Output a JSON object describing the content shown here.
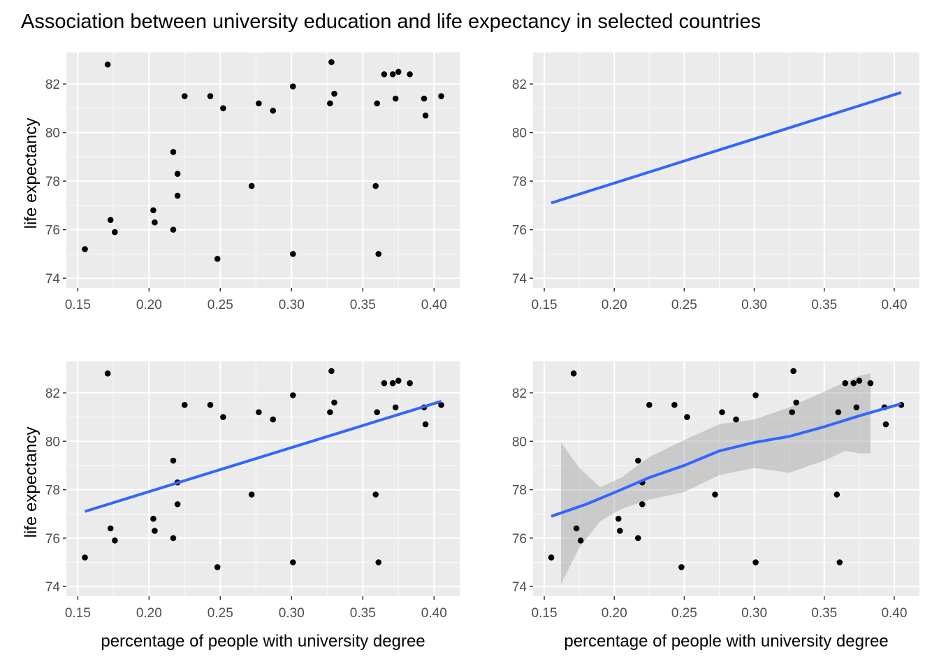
{
  "figure": {
    "title": "Association between university education and life expectancy in selected countries"
  },
  "colors": {
    "panel_background": "#EBEBEB",
    "grid": "#FFFFFF",
    "points": "#000000",
    "smooth_line": "#3366FF",
    "confidence_band": "#999999",
    "tick_text": "#4D4D4D"
  },
  "chart_data": [
    {
      "type": "scatter",
      "panel": "top-left",
      "show_points": true,
      "show_line": false,
      "show_band": false,
      "xlabel": "",
      "ylabel": "life expectancy",
      "xlim": [
        0.142,
        0.418
      ],
      "ylim": [
        73.6,
        83.3
      ],
      "xticks": [
        0.15,
        0.2,
        0.25,
        0.3,
        0.35,
        0.4
      ],
      "xtick_labels": [
        "0.15",
        "0.20",
        "0.25",
        "0.30",
        "0.35",
        "0.40"
      ],
      "yticks": [
        74,
        76,
        78,
        80,
        82
      ],
      "ytick_labels": [
        "74",
        "76",
        "78",
        "80",
        "82"
      ],
      "grid": true,
      "points": [
        {
          "x": 0.155,
          "y": 75.2
        },
        {
          "x": 0.171,
          "y": 82.8
        },
        {
          "x": 0.173,
          "y": 76.4
        },
        {
          "x": 0.176,
          "y": 75.9
        },
        {
          "x": 0.203,
          "y": 76.8
        },
        {
          "x": 0.204,
          "y": 76.3
        },
        {
          "x": 0.217,
          "y": 79.2
        },
        {
          "x": 0.217,
          "y": 76.0
        },
        {
          "x": 0.22,
          "y": 78.3
        },
        {
          "x": 0.22,
          "y": 77.4
        },
        {
          "x": 0.225,
          "y": 81.5
        },
        {
          "x": 0.243,
          "y": 81.5
        },
        {
          "x": 0.248,
          "y": 74.8
        },
        {
          "x": 0.252,
          "y": 81.0
        },
        {
          "x": 0.272,
          "y": 77.8
        },
        {
          "x": 0.277,
          "y": 81.2
        },
        {
          "x": 0.287,
          "y": 80.9
        },
        {
          "x": 0.301,
          "y": 81.9
        },
        {
          "x": 0.301,
          "y": 75.0
        },
        {
          "x": 0.327,
          "y": 81.2
        },
        {
          "x": 0.328,
          "y": 82.9
        },
        {
          "x": 0.33,
          "y": 81.6
        },
        {
          "x": 0.359,
          "y": 77.8
        },
        {
          "x": 0.36,
          "y": 81.2
        },
        {
          "x": 0.361,
          "y": 75.0
        },
        {
          "x": 0.365,
          "y": 82.4
        },
        {
          "x": 0.371,
          "y": 82.4
        },
        {
          "x": 0.373,
          "y": 81.4
        },
        {
          "x": 0.375,
          "y": 82.5
        },
        {
          "x": 0.383,
          "y": 82.4
        },
        {
          "x": 0.393,
          "y": 81.4
        },
        {
          "x": 0.394,
          "y": 80.7
        },
        {
          "x": 0.405,
          "y": 81.5
        }
      ]
    },
    {
      "type": "line",
      "panel": "top-right",
      "show_points": false,
      "show_line": true,
      "show_band": false,
      "xlabel": "",
      "ylabel": "",
      "xlim": [
        0.142,
        0.418
      ],
      "ylim": [
        73.6,
        83.3
      ],
      "xticks": [
        0.15,
        0.2,
        0.25,
        0.3,
        0.35,
        0.4
      ],
      "xtick_labels": [
        "0.15",
        "0.20",
        "0.25",
        "0.30",
        "0.35",
        "0.40"
      ],
      "yticks": [
        74,
        76,
        78,
        80,
        82
      ],
      "ytick_labels": [
        "74",
        "76",
        "78",
        "80",
        "82"
      ],
      "grid": true,
      "line": [
        {
          "x": 0.155,
          "y": 77.1
        },
        {
          "x": 0.405,
          "y": 81.65
        }
      ]
    },
    {
      "type": "scatter",
      "panel": "bottom-left",
      "show_points": true,
      "show_line": true,
      "show_band": false,
      "xlabel": "percentage of people with university degree",
      "ylabel": "life expectancy",
      "xlim": [
        0.142,
        0.418
      ],
      "ylim": [
        73.6,
        83.3
      ],
      "xticks": [
        0.15,
        0.2,
        0.25,
        0.3,
        0.35,
        0.4
      ],
      "xtick_labels": [
        "0.15",
        "0.20",
        "0.25",
        "0.30",
        "0.35",
        "0.40"
      ],
      "yticks": [
        74,
        76,
        78,
        80,
        82
      ],
      "ytick_labels": [
        "74",
        "76",
        "78",
        "80",
        "82"
      ],
      "grid": true,
      "points": [
        {
          "x": 0.155,
          "y": 75.2
        },
        {
          "x": 0.171,
          "y": 82.8
        },
        {
          "x": 0.173,
          "y": 76.4
        },
        {
          "x": 0.176,
          "y": 75.9
        },
        {
          "x": 0.203,
          "y": 76.8
        },
        {
          "x": 0.204,
          "y": 76.3
        },
        {
          "x": 0.217,
          "y": 79.2
        },
        {
          "x": 0.217,
          "y": 76.0
        },
        {
          "x": 0.22,
          "y": 78.3
        },
        {
          "x": 0.22,
          "y": 77.4
        },
        {
          "x": 0.225,
          "y": 81.5
        },
        {
          "x": 0.243,
          "y": 81.5
        },
        {
          "x": 0.248,
          "y": 74.8
        },
        {
          "x": 0.252,
          "y": 81.0
        },
        {
          "x": 0.272,
          "y": 77.8
        },
        {
          "x": 0.277,
          "y": 81.2
        },
        {
          "x": 0.287,
          "y": 80.9
        },
        {
          "x": 0.301,
          "y": 81.9
        },
        {
          "x": 0.301,
          "y": 75.0
        },
        {
          "x": 0.327,
          "y": 81.2
        },
        {
          "x": 0.328,
          "y": 82.9
        },
        {
          "x": 0.33,
          "y": 81.6
        },
        {
          "x": 0.359,
          "y": 77.8
        },
        {
          "x": 0.36,
          "y": 81.2
        },
        {
          "x": 0.361,
          "y": 75.0
        },
        {
          "x": 0.365,
          "y": 82.4
        },
        {
          "x": 0.371,
          "y": 82.4
        },
        {
          "x": 0.373,
          "y": 81.4
        },
        {
          "x": 0.375,
          "y": 82.5
        },
        {
          "x": 0.383,
          "y": 82.4
        },
        {
          "x": 0.393,
          "y": 81.4
        },
        {
          "x": 0.394,
          "y": 80.7
        },
        {
          "x": 0.405,
          "y": 81.5
        }
      ],
      "line": [
        {
          "x": 0.155,
          "y": 77.1
        },
        {
          "x": 0.405,
          "y": 81.65
        }
      ]
    },
    {
      "type": "scatter",
      "panel": "bottom-right",
      "show_points": true,
      "show_line": true,
      "show_band": true,
      "xlabel": "percentage of people with university degree",
      "ylabel": "",
      "xlim": [
        0.142,
        0.418
      ],
      "ylim": [
        73.6,
        83.3
      ],
      "xticks": [
        0.15,
        0.2,
        0.25,
        0.3,
        0.35,
        0.4
      ],
      "xtick_labels": [
        "0.15",
        "0.20",
        "0.25",
        "0.30",
        "0.35",
        "0.40"
      ],
      "yticks": [
        74,
        76,
        78,
        80,
        82
      ],
      "ytick_labels": [
        "74",
        "76",
        "78",
        "80",
        "82"
      ],
      "grid": true,
      "points": [
        {
          "x": 0.155,
          "y": 75.2
        },
        {
          "x": 0.171,
          "y": 82.8
        },
        {
          "x": 0.173,
          "y": 76.4
        },
        {
          "x": 0.176,
          "y": 75.9
        },
        {
          "x": 0.203,
          "y": 76.8
        },
        {
          "x": 0.204,
          "y": 76.3
        },
        {
          "x": 0.217,
          "y": 79.2
        },
        {
          "x": 0.217,
          "y": 76.0
        },
        {
          "x": 0.22,
          "y": 78.3
        },
        {
          "x": 0.22,
          "y": 77.4
        },
        {
          "x": 0.225,
          "y": 81.5
        },
        {
          "x": 0.243,
          "y": 81.5
        },
        {
          "x": 0.248,
          "y": 74.8
        },
        {
          "x": 0.252,
          "y": 81.0
        },
        {
          "x": 0.272,
          "y": 77.8
        },
        {
          "x": 0.277,
          "y": 81.2
        },
        {
          "x": 0.287,
          "y": 80.9
        },
        {
          "x": 0.301,
          "y": 81.9
        },
        {
          "x": 0.301,
          "y": 75.0
        },
        {
          "x": 0.327,
          "y": 81.2
        },
        {
          "x": 0.328,
          "y": 82.9
        },
        {
          "x": 0.33,
          "y": 81.6
        },
        {
          "x": 0.359,
          "y": 77.8
        },
        {
          "x": 0.36,
          "y": 81.2
        },
        {
          "x": 0.361,
          "y": 75.0
        },
        {
          "x": 0.365,
          "y": 82.4
        },
        {
          "x": 0.371,
          "y": 82.4
        },
        {
          "x": 0.373,
          "y": 81.4
        },
        {
          "x": 0.375,
          "y": 82.5
        },
        {
          "x": 0.383,
          "y": 82.4
        },
        {
          "x": 0.393,
          "y": 81.4
        },
        {
          "x": 0.394,
          "y": 80.7
        },
        {
          "x": 0.405,
          "y": 81.5
        }
      ],
      "line": [
        {
          "x": 0.155,
          "y": 76.9
        },
        {
          "x": 0.18,
          "y": 77.4
        },
        {
          "x": 0.205,
          "y": 78.0
        },
        {
          "x": 0.225,
          "y": 78.5
        },
        {
          "x": 0.25,
          "y": 79.0
        },
        {
          "x": 0.275,
          "y": 79.6
        },
        {
          "x": 0.3,
          "y": 79.95
        },
        {
          "x": 0.325,
          "y": 80.2
        },
        {
          "x": 0.35,
          "y": 80.6
        },
        {
          "x": 0.375,
          "y": 81.05
        },
        {
          "x": 0.405,
          "y": 81.55
        }
      ],
      "band": [
        {
          "x": 0.162,
          "lower": 74.1,
          "upper": 79.95
        },
        {
          "x": 0.175,
          "lower": 75.6,
          "upper": 78.9
        },
        {
          "x": 0.19,
          "lower": 76.7,
          "upper": 78.1
        },
        {
          "x": 0.205,
          "lower": 77.2,
          "upper": 78.5
        },
        {
          "x": 0.225,
          "lower": 77.6,
          "upper": 79.35
        },
        {
          "x": 0.25,
          "lower": 77.9,
          "upper": 80.05
        },
        {
          "x": 0.275,
          "lower": 78.6,
          "upper": 80.7
        },
        {
          "x": 0.3,
          "lower": 78.9,
          "upper": 80.9
        },
        {
          "x": 0.325,
          "lower": 78.7,
          "upper": 81.4
        },
        {
          "x": 0.35,
          "lower": 79.2,
          "upper": 82.05
        },
        {
          "x": 0.365,
          "lower": 79.6,
          "upper": 82.45
        },
        {
          "x": 0.375,
          "lower": 79.5,
          "upper": 82.7
        },
        {
          "x": 0.383,
          "lower": 79.5,
          "upper": 82.8
        }
      ]
    }
  ]
}
